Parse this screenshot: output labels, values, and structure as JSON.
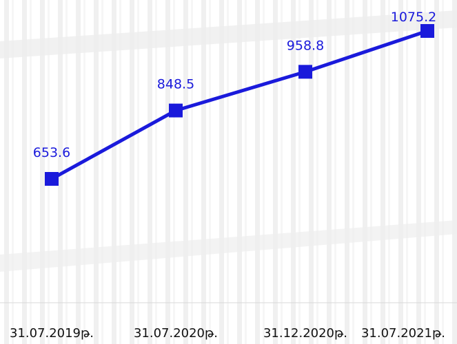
{
  "chart_data": {
    "type": "line",
    "categories": [
      "31.07.2019թ.",
      "31.07.2020թ.",
      "31.12.2020թ.",
      "31.07.2021թ."
    ],
    "series": [
      {
        "values": [
          653.6,
          848.5,
          958.8,
          1075.2
        ]
      }
    ],
    "data_labels": [
      "653.6",
      "848.5",
      "958.8",
      "1075.2"
    ],
    "title": "",
    "xlabel": "",
    "ylabel": "",
    "ylim": [
      0,
      1100
    ],
    "grid": false,
    "legend": "none",
    "colors": {
      "line": "#1a1adb",
      "marker": "#1a1adb",
      "label": "#1a1adb",
      "background": "#ffffff",
      "axis": "#d9d9d9"
    }
  }
}
